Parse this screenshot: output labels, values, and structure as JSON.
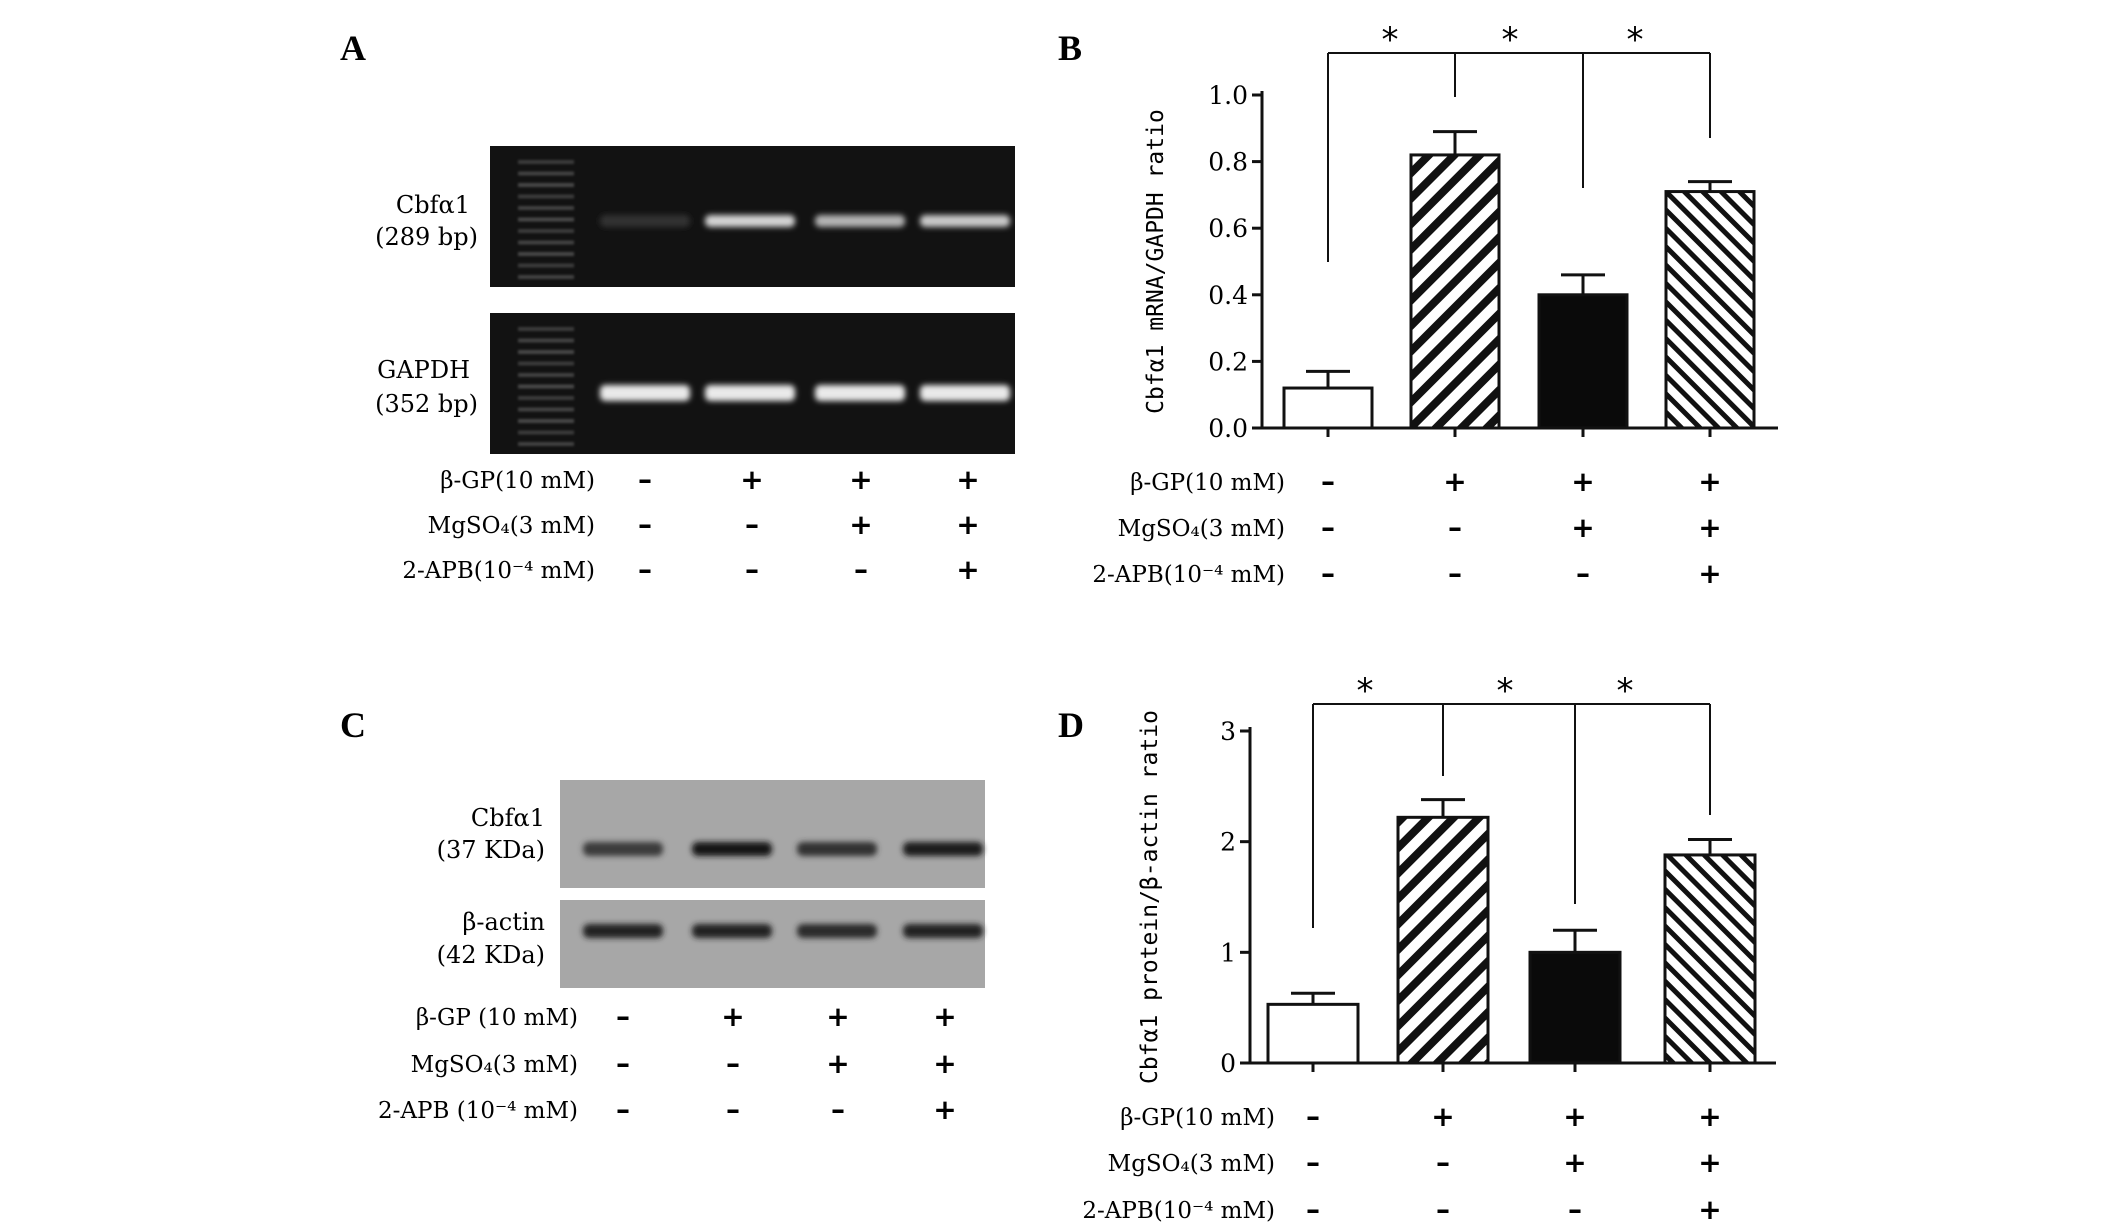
{
  "panels": {
    "A": {
      "letter": "A",
      "gel": [
        {
          "name": "Cbfα1",
          "size": "(289 bp)",
          "band_intensity": [
            0.05,
            0.8,
            0.65,
            0.75
          ]
        },
        {
          "name": "GAPDH",
          "size": "(352 bp)",
          "band_intensity": [
            0.9,
            0.9,
            0.9,
            0.9
          ]
        }
      ]
    },
    "B": {
      "letter": "B"
    },
    "C": {
      "letter": "C",
      "blot": [
        {
          "name": "Cbfα1",
          "size": "(37 KDa)",
          "band_intensity": [
            0.7,
            0.95,
            0.75,
            0.9
          ]
        },
        {
          "name": "β-actin",
          "size": "(42 KDa)",
          "band_intensity": [
            0.85,
            0.85,
            0.8,
            0.85
          ]
        }
      ]
    },
    "D": {
      "letter": "D"
    }
  },
  "treatments": {
    "rows": [
      {
        "label_A": "β-GP(10 mM)",
        "label_B": "β-GP(10 mM)",
        "label_C": "β-GP (10 mM)",
        "label_D": "β-GP(10 mM)",
        "signs": [
          "-",
          "+",
          "+",
          "+"
        ]
      },
      {
        "label_A": "MgSO₄(3 mM)",
        "label_B": "MgSO₄(3 mM)",
        "label_C": "MgSO₄(3 mM)",
        "label_D": "MgSO₄(3 mM)",
        "signs": [
          "-",
          "-",
          "+",
          "+"
        ]
      },
      {
        "label_A": "2-APB(10⁻⁴ mM)",
        "label_B": "2-APB(10⁻⁴ mM)",
        "label_C": "2-APB (10⁻⁴ mM)",
        "label_D": "2-APB(10⁻⁴ mM)",
        "signs": [
          "-",
          "-",
          "-",
          "+"
        ]
      }
    ]
  },
  "chart_data": [
    {
      "panel": "B",
      "type": "bar",
      "ylabel": "Cbfα1 mRNA/GAPDH ratio",
      "ylim": [
        0,
        1.0
      ],
      "yticks": [
        "0.0",
        "0.2",
        "0.4",
        "0.6",
        "0.8",
        "1.0"
      ],
      "values": [
        0.12,
        0.82,
        0.4,
        0.71
      ],
      "errors": [
        0.05,
        0.07,
        0.06,
        0.03
      ],
      "fills": [
        "white",
        "hatch-back",
        "black",
        "hatch-fwd"
      ],
      "significance": [
        "*",
        "*",
        "*"
      ]
    },
    {
      "panel": "D",
      "type": "bar",
      "ylabel": "Cbfα1 protein/β-actin ratio",
      "ylim": [
        0,
        3
      ],
      "yticks": [
        "0",
        "1",
        "2",
        "3"
      ],
      "values": [
        0.53,
        2.22,
        1.0,
        1.88
      ],
      "errors": [
        0.1,
        0.16,
        0.2,
        0.14
      ],
      "fills": [
        "white",
        "hatch-back",
        "black",
        "hatch-fwd"
      ],
      "significance": [
        "*",
        "*",
        "*"
      ]
    }
  ],
  "colors": {
    "gel_bg": "#121212",
    "band_bright": "#f2f2f2",
    "blot_bg": "#9a9a9a",
    "band_dark": "#111111",
    "bar_black": "#0a0a0a"
  }
}
